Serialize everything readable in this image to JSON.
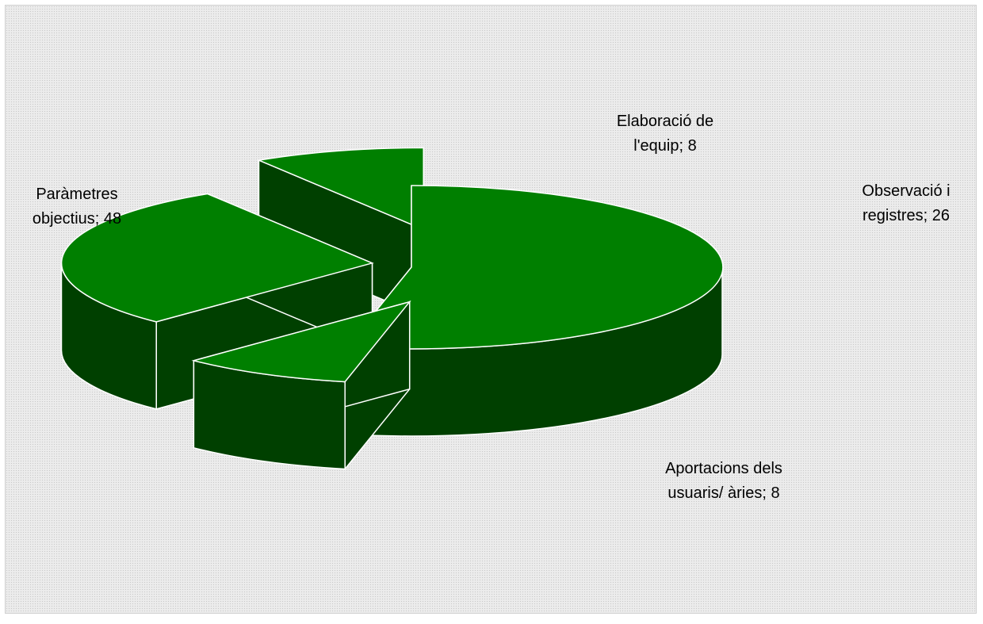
{
  "chart_data": {
    "type": "pie",
    "style": "3d-exploded",
    "slices": [
      {
        "label": "Paràmetres objectius; 48",
        "lines": [
          "Paràmetres",
          "objectius; 48"
        ],
        "value": 48
      },
      {
        "label": "Elaboració de l'equip; 8",
        "lines": [
          "Elaboració de",
          "l'equip; 8"
        ],
        "value": 8
      },
      {
        "label": "Observació i registres; 26",
        "lines": [
          "Observació i",
          "registres; 26"
        ],
        "value": 26
      },
      {
        "label": "Aportacions dels usuaris/ àries; 8",
        "lines": [
          "Aportacions dels",
          "usuaris/ àries; 8"
        ],
        "value": 8
      }
    ],
    "colors": {
      "top": "#007f00",
      "side": "#004000",
      "outline": "#ffffff",
      "background": "#ececec"
    },
    "legend": "none"
  }
}
